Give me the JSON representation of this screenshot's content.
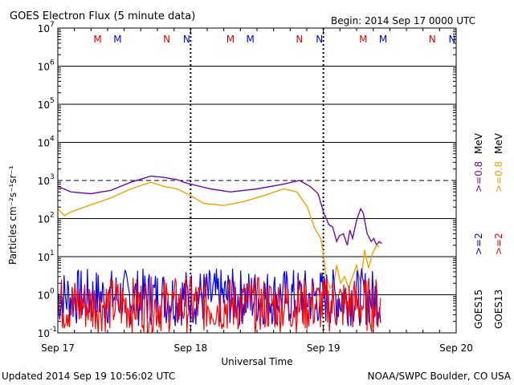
{
  "chart_data": {
    "type": "line",
    "title": "GOES Electron Flux (5 minute data)",
    "begin": "Begin: 2014 Sep 17 0000 UTC",
    "xlabel": "Universal Time",
    "ylabel": "Particles cm⁻²s⁻¹sr⁻¹",
    "footer_left": "Updated 2014 Sep 19 10:56:02 UTC",
    "footer_right": "NOAA/SWPC Boulder, CO USA",
    "xlim": [
      "2014-09-17T00:00",
      "2014-09-20T00:00"
    ],
    "x_ticks": [
      "Sep 17",
      "Sep 18",
      "Sep 19",
      "Sep 20"
    ],
    "yscale": "log",
    "ylim": [
      0.1,
      10000000
    ],
    "y_ticks": [
      {
        "value": 0.1,
        "base": "10",
        "exp": "-1"
      },
      {
        "value": 1,
        "base": "10",
        "exp": "0"
      },
      {
        "value": 10,
        "base": "10",
        "exp": "1"
      },
      {
        "value": 100,
        "base": "10",
        "exp": "2"
      },
      {
        "value": 1000,
        "base": "10",
        "exp": "3"
      },
      {
        "value": 10000,
        "base": "10",
        "exp": "4"
      },
      {
        "value": 100000,
        "base": "10",
        "exp": "5"
      },
      {
        "value": 1000000,
        "base": "10",
        "exp": "6"
      },
      {
        "value": 10000000,
        "base": "10",
        "exp": "7"
      }
    ],
    "threshold": 1000,
    "mn_markers": [
      {
        "day": 0.3,
        "label": "M",
        "color": "#dd0000"
      },
      {
        "day": 0.45,
        "label": "M",
        "color": "#0000dd"
      },
      {
        "day": 0.82,
        "label": "N",
        "color": "#dd0000"
      },
      {
        "day": 0.97,
        "label": "N",
        "color": "#0000dd"
      },
      {
        "day": 1.3,
        "label": "M",
        "color": "#dd0000"
      },
      {
        "day": 1.45,
        "label": "M",
        "color": "#0000dd"
      },
      {
        "day": 1.82,
        "label": "N",
        "color": "#dd0000"
      },
      {
        "day": 1.97,
        "label": "N",
        "color": "#0000dd"
      },
      {
        "day": 2.3,
        "label": "M",
        "color": "#dd0000"
      },
      {
        "day": 2.45,
        "label": "M",
        "color": "#0000dd"
      },
      {
        "day": 2.82,
        "label": "N",
        "color": "#dd0000"
      },
      {
        "day": 2.97,
        "label": "N",
        "color": "#0000dd"
      }
    ],
    "legend": [
      {
        "satellite": "GOES15",
        "low": ">=2",
        "high": ">=0.8",
        "unit": "MeV",
        "low_color": "#0000ff",
        "high_color": "#6a0dad"
      },
      {
        "satellite": "GOES13",
        "low": ">=2",
        "high": ">=0.8",
        "unit": "MeV",
        "low_color": "#ff0000",
        "high_color": "#f0a000"
      }
    ],
    "series": [
      {
        "name": "GOES15 >=0.8 MeV",
        "color": "#6a0dad",
        "x": [
          0.0,
          0.1,
          0.25,
          0.4,
          0.55,
          0.7,
          0.8,
          0.9,
          0.95,
          1.0,
          1.15,
          1.3,
          1.5,
          1.7,
          1.82,
          1.9,
          1.96,
          2.0,
          2.04,
          2.07,
          2.1,
          2.12,
          2.15,
          2.18,
          2.2,
          2.22,
          2.25,
          2.28,
          2.3,
          2.33,
          2.36,
          2.38,
          2.4,
          2.42,
          2.44
        ],
        "y": [
          700,
          500,
          450,
          550,
          900,
          1300,
          1200,
          1050,
          900,
          800,
          600,
          500,
          600,
          800,
          1000,
          700,
          450,
          150,
          70,
          60,
          25,
          35,
          40,
          20,
          50,
          30,
          90,
          180,
          140,
          40,
          25,
          30,
          20,
          25,
          22
        ]
      },
      {
        "name": "GOES13 >=0.8 MeV",
        "color": "#f0a000",
        "x": [
          0.0,
          0.05,
          0.1,
          0.2,
          0.4,
          0.55,
          0.7,
          0.8,
          0.9,
          1.0,
          1.1,
          1.25,
          1.4,
          1.55,
          1.7,
          1.8,
          1.88,
          1.93,
          1.98,
          2.0,
          2.02,
          2.05,
          2.08,
          2.1,
          2.13,
          2.16,
          2.19,
          2.22,
          2.25,
          2.28,
          2.31,
          2.34,
          2.37,
          2.4,
          2.42
        ],
        "y": [
          180,
          120,
          150,
          200,
          350,
          600,
          900,
          700,
          600,
          400,
          250,
          220,
          280,
          400,
          600,
          500,
          200,
          60,
          30,
          12,
          3,
          1.5,
          2,
          6,
          2,
          3,
          1.5,
          3,
          6,
          2,
          15,
          5,
          12,
          20,
          18
        ]
      },
      {
        "name": "GOES15 >=2 MeV",
        "color": "#0000ff",
        "style": "noise",
        "x_range": [
          0.0,
          2.43
        ],
        "typical_range": [
          0.15,
          5
        ]
      },
      {
        "name": "GOES13 >=2 MeV",
        "color": "#ff0000",
        "style": "noise",
        "x_range": [
          0.0,
          2.43
        ],
        "typical_range": [
          0.1,
          3
        ]
      }
    ]
  }
}
